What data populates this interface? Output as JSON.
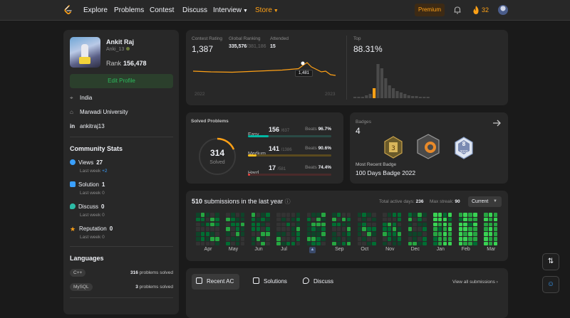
{
  "nav": {
    "items": [
      "Explore",
      "Problems",
      "Contest",
      "Discuss",
      "Interview",
      "Store"
    ],
    "premium": "Premium",
    "streak": "32"
  },
  "profile": {
    "name": "Ankit Raj",
    "username": "Anki_13",
    "rank_label": "Rank",
    "rank": "156,478",
    "edit_label": "Edit Profile",
    "country": "India",
    "university": "Marwadi University",
    "linkedin": "ankitraj13"
  },
  "community": {
    "title": "Community Stats",
    "stats": [
      {
        "label": "Views",
        "value": "27",
        "week": "Last week",
        "delta": "+2",
        "color": "#3aa0ff"
      },
      {
        "label": "Solution",
        "value": "1",
        "week": "Last week",
        "delta": "0",
        "color": "#3aa0ff"
      },
      {
        "label": "Discuss",
        "value": "0",
        "week": "Last week",
        "delta": "0",
        "color": "#2cbba6"
      },
      {
        "label": "Reputation",
        "value": "0",
        "week": "Last week",
        "delta": "0",
        "color": "#ffa116"
      }
    ]
  },
  "languages": {
    "title": "Languages",
    "items": [
      {
        "name": "C++",
        "count": "316",
        "suffix": "problems solved"
      },
      {
        "name": "MySQL",
        "count": "3",
        "suffix": "problems solved"
      }
    ]
  },
  "contest": {
    "rating_label": "Contest Rating",
    "rating": "1,387",
    "global_label": "Global Ranking",
    "global_rank": "335,576",
    "global_total": "/381,186",
    "attended_label": "Attended",
    "attended": "15",
    "tooltip": "1,481",
    "year_start": "2022",
    "year_end": "2023",
    "top_label": "Top",
    "top_value": "88.31%"
  },
  "solved": {
    "title": "Solved Problems",
    "total": "314",
    "total_label": "Solved",
    "rows": [
      {
        "name": "Easy",
        "solved": "156",
        "total": "/637",
        "beats_label": "Beats",
        "beats": "96.7%",
        "color": "#00b8a3",
        "track": "#2a4a45",
        "fraction": 0.245
      },
      {
        "name": "Medium",
        "solved": "141",
        "total": "/1386",
        "beats_label": "Beats",
        "beats": "90.6%",
        "color": "#ffc01e",
        "track": "#5a4a1e",
        "fraction": 0.102
      },
      {
        "name": "Hard",
        "solved": "17",
        "total": "/581",
        "beats_label": "Beats",
        "beats": "74.4%",
        "color": "#ef4743",
        "track": "#4a2a2a",
        "fraction": 0.029
      }
    ]
  },
  "badges": {
    "title": "Badges",
    "count": "4",
    "recent_label": "Most Recent Badge",
    "recent": "100 Days Badge 2022",
    "badge_year": "2022",
    "badge_num": "8"
  },
  "submissions": {
    "count": "510",
    "label": "submissions in the last year",
    "active_label": "Total active days:",
    "active": "236",
    "streak_label": "Max streak:",
    "streak": "90",
    "dropdown": "Current",
    "months": [
      "Apr",
      "May",
      "Jun",
      "Jul",
      "",
      "Sep",
      "Oct",
      "Nov",
      "Dec",
      "Jan",
      "Feb",
      "Mar"
    ]
  },
  "recent": {
    "tabs": [
      "Recent AC",
      "Solutions",
      "Discuss"
    ],
    "view_all": "View all submissions"
  }
}
